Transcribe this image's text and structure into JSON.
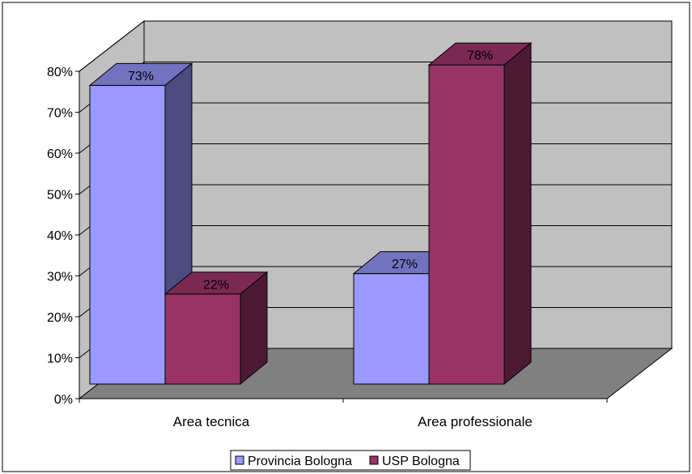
{
  "chart_data": {
    "type": "bar",
    "categories": [
      "Area tecnica",
      "Area professionale"
    ],
    "series": [
      {
        "name": "Provincia Bologna",
        "values": [
          73,
          27
        ],
        "labels": [
          "73%",
          "27%"
        ]
      },
      {
        "name": "USP Bologna",
        "values": [
          22,
          78
        ],
        "labels": [
          "22%",
          "78%"
        ]
      }
    ],
    "ylim": [
      0,
      80
    ],
    "yticks": [
      "0%",
      "10%",
      "20%",
      "30%",
      "40%",
      "50%",
      "60%",
      "70%",
      "80%"
    ],
    "grid": true,
    "style": "3d-clustered-column",
    "legend_position": "bottom"
  },
  "colors": {
    "provincia_front": "#9999ff",
    "provincia_top": "#7272c2",
    "provincia_side": "#4c4c80",
    "usp_front": "#993366",
    "usp_top": "#7b2952",
    "usp_side": "#4c1a33",
    "back_wall": "#c0c0c0",
    "side_wall": "#c0c0c0",
    "floor": "#808080"
  }
}
